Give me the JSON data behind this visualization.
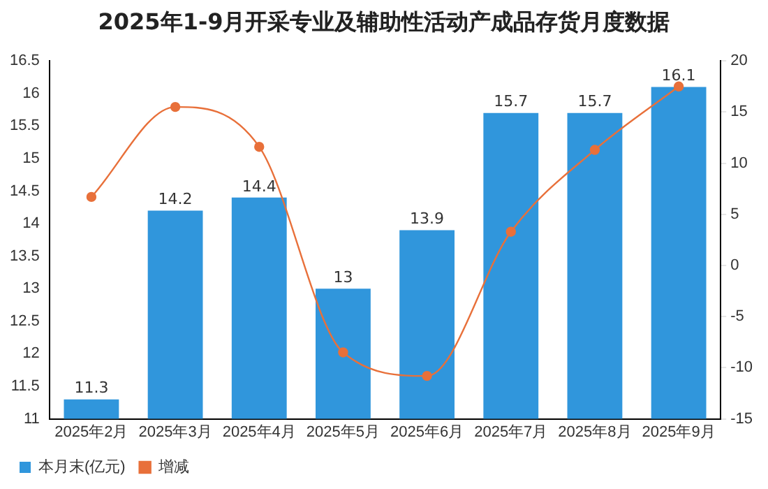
{
  "chart_data": {
    "type": "bar",
    "title": "2025年1-9月开采专业及辅助性活动产成品存货月度数据",
    "categories": [
      "2025年2月",
      "2025年3月",
      "2025年4月",
      "2025年5月",
      "2025年6月",
      "2025年7月",
      "2025年8月",
      "2025年9月"
    ],
    "series": [
      {
        "name": "本月末(亿元)",
        "color": "#3096dc",
        "values": [
          11.3,
          14.2,
          14.4,
          13,
          13.9,
          15.7,
          15.7,
          16.1
        ],
        "value_labels": [
          "11.3",
          "14.2",
          "14.4",
          "13",
          "13.9",
          "15.7",
          "15.7",
          "16.1"
        ]
      },
      {
        "name": "增减",
        "type": "line",
        "axis": "y2",
        "color": "#e8703a",
        "values": [
          6.7,
          15.5,
          11.6,
          -8.5,
          -10.8,
          3.3,
          11.3,
          17.5
        ]
      }
    ],
    "ylim": [
      11,
      16.5
    ],
    "yticks": [
      11,
      11.5,
      12,
      12.5,
      13,
      13.5,
      14,
      14.5,
      15,
      15.5,
      16,
      16.5
    ],
    "y2lim": [
      -15,
      20
    ],
    "y2ticks": [
      -15,
      -10,
      -5,
      0,
      5,
      10,
      15,
      20
    ],
    "grid": false,
    "legend": "bottom left",
    "marker": "circle",
    "line_style": "solid"
  }
}
